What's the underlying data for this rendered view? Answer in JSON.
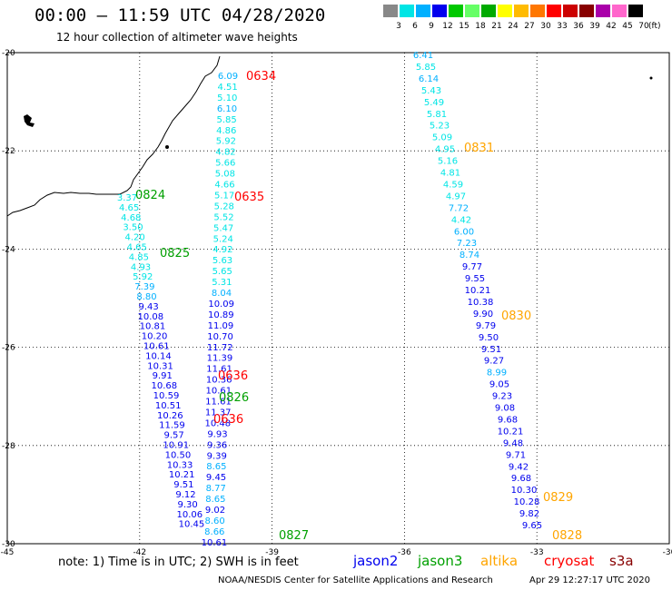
{
  "header": {
    "title": "00:00 – 11:59 UTC 04/28/2020",
    "subtitle": "12 hour collection of altimeter wave heights"
  },
  "legend": {
    "unit": "(ft)",
    "colors": [
      "#888888",
      "#00e5e5",
      "#00b0ff",
      "#0000ee",
      "#00c800",
      "#66ff66",
      "#00aa00",
      "#ffff00",
      "#ffbb00",
      "#ff7700",
      "#ff0000",
      "#cc0000",
      "#880000",
      "#aa00aa",
      "#ff66cc",
      "#000000"
    ],
    "labels": [
      "3",
      "6",
      "9",
      "12",
      "15",
      "18",
      "21",
      "24",
      "27",
      "30",
      "33",
      "36",
      "39",
      "42",
      "45",
      "70"
    ]
  },
  "axes": {
    "lon_labels": [
      "-45",
      "-42",
      "-39",
      "-36",
      "-33",
      "-30"
    ],
    "lat_labels": [
      "-20",
      "-22",
      "-24",
      "-26",
      "-28",
      "-30"
    ]
  },
  "tracks": {
    "west": {
      "values": [
        "6.09",
        "4.51",
        "5.10",
        "6.10",
        "5.85",
        "4.86",
        "5.92",
        "4.82",
        "5.66",
        "5.08",
        "4.66",
        "5.17",
        "5.28",
        "5.52",
        "5.47",
        "5.24",
        "4.92",
        "5.63",
        "5.65",
        "5.31",
        "8.04",
        "10.09",
        "10.89",
        "11.09",
        "10.70",
        "11.72",
        "11.39",
        "11.61",
        "10.36",
        "10.61",
        "11.61",
        "11.37",
        "10.48",
        "9.93",
        "9.36",
        "9.39",
        "8.65",
        "9.45",
        "8.77",
        "8.65",
        "9.02",
        "8.60",
        "8.66",
        "10.61"
      ],
      "times": [
        {
          "label": "0634",
          "color": "red"
        },
        {
          "label": "0635",
          "color": "red"
        },
        {
          "label": "0636",
          "color": "red"
        },
        {
          "label": "0826",
          "color": "green"
        },
        {
          "label": "0636",
          "color": "red"
        },
        {
          "label": "0827",
          "color": "green"
        }
      ]
    },
    "middle": {
      "values": [
        "3.37",
        "4.65",
        "4.68",
        "3.50",
        "4.20",
        "4.65",
        "4.85",
        "4.93",
        "5.92",
        "7.39",
        "8.80",
        "9.43",
        "10.08",
        "10.81",
        "10.20",
        "10.61",
        "10.14",
        "10.31",
        "9.91",
        "10.68",
        "10.59",
        "10.51",
        "10.26",
        "11.59",
        "9.57",
        "10.91",
        "10.50",
        "10.33",
        "10.21",
        "9.51",
        "9.12",
        "9.30",
        "10.06",
        "10.45"
      ],
      "times": [
        {
          "label": "0824",
          "color": "green"
        },
        {
          "label": "0825",
          "color": "green"
        }
      ]
    },
    "east": {
      "values": [
        "6.41",
        "5.85",
        "6.14",
        "5.43",
        "5.49",
        "5.81",
        "5.23",
        "5.09",
        "4.95",
        "5.16",
        "4.81",
        "4.59",
        "4.97",
        "7.72",
        "4.42",
        "6.00",
        "7.23",
        "8.74",
        "9.77",
        "9.55",
        "10.21",
        "10.38",
        "9.90",
        "9.79",
        "9.50",
        "9.51",
        "9.27",
        "8.99",
        "9.05",
        "9.23",
        "9.08",
        "9.68",
        "10.21",
        "9.48",
        "9.71",
        "9.42",
        "9.68",
        "10.30",
        "10.28",
        "9.82",
        "9.65"
      ],
      "times": [
        {
          "label": "0831",
          "color": "orange"
        },
        {
          "label": "0830",
          "color": "orange"
        },
        {
          "label": "0829",
          "color": "orange"
        },
        {
          "label": "0828",
          "color": "orange"
        }
      ]
    }
  },
  "note": "note:  1) Time is in UTC;  2) SWH is in feet",
  "satellites": [
    {
      "name": "jason2",
      "color": "#0000ee"
    },
    {
      "name": "jason3",
      "color": "#00a000"
    },
    {
      "name": "altika",
      "color": "#ffa500"
    },
    {
      "name": "cryosat",
      "color": "#ff0000"
    },
    {
      "name": "s3a",
      "color": "#880000"
    }
  ],
  "footer": {
    "credit": "NOAA/NESDIS Center for Satellite Applications and Research",
    "timestamp": "Apr 29 12:27:17 UTC 2020"
  }
}
